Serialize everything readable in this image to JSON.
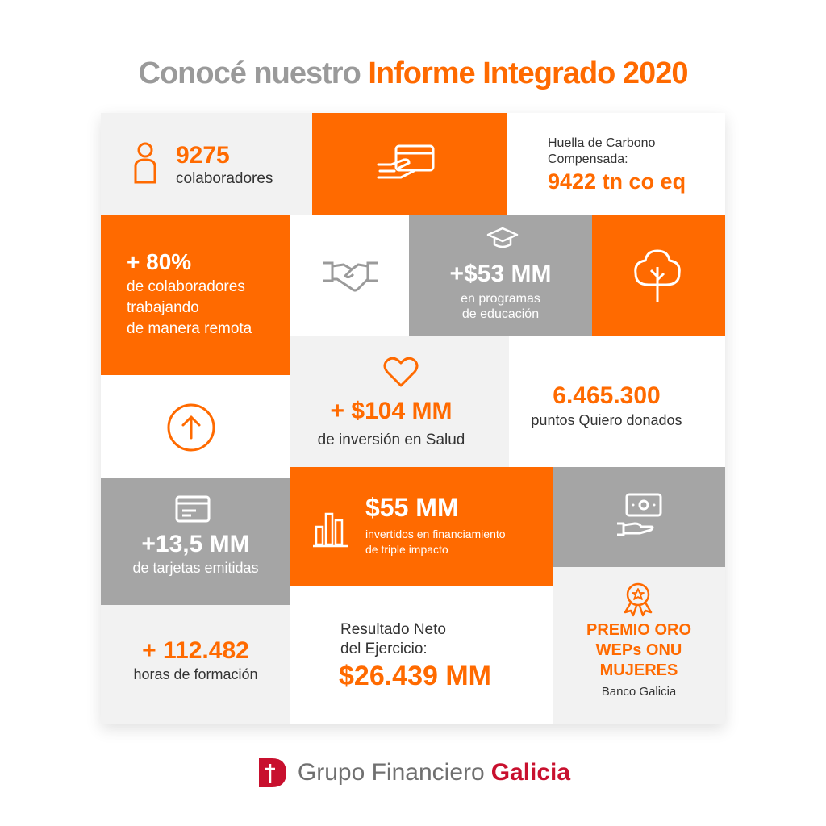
{
  "title": {
    "part1": "Conocé nuestro",
    "part2": "Informe Integrado 2020"
  },
  "colors": {
    "orange": "#ff6a00",
    "gray": "#a5a5a5",
    "light": "#f2f2f2",
    "brand_red": "#c8102e"
  },
  "tiles": {
    "colaboradores": {
      "value": "9275",
      "label": "colaboradores"
    },
    "huella": {
      "label1": "Huella de Carbono",
      "label2": "Compensada:",
      "value": "9422 tn co eq"
    },
    "remoto": {
      "value": "+ 80%",
      "line1": "de colaboradores",
      "line2": "trabajando",
      "line3": "de manera remota"
    },
    "educacion": {
      "value": "+$53 MM",
      "line1": "en programas",
      "line2": "de educación"
    },
    "salud": {
      "value": "+ $104 MM",
      "label": "de inversión en Salud"
    },
    "quiero": {
      "value": "6.465.300",
      "label": "puntos Quiero donados"
    },
    "tarjetas": {
      "value": "+13,5 MM",
      "label": "de tarjetas emitidas"
    },
    "financiamiento": {
      "value": "$55 MM",
      "line1": "invertidos en financiamiento",
      "line2": "de triple impacto"
    },
    "formacion": {
      "value": "+ 112.482",
      "label": "horas de formación"
    },
    "resultado": {
      "label1": "Resultado Neto",
      "label2": "del Ejercicio:",
      "value": "$26.439 MM"
    },
    "premio": {
      "line1": "PREMIO ORO",
      "line2": "WEPs ONU",
      "line3": "MUJERES",
      "label": "Banco Galicia"
    }
  },
  "icons": [
    "person-icon",
    "hand-card-icon",
    "handshake-icon",
    "graduation-cap-icon",
    "tree-icon",
    "arrow-up-circle-icon",
    "heart-icon",
    "card-icon",
    "bar-chart-icon",
    "hand-money-icon",
    "award-icon"
  ],
  "footer": {
    "brand_part1": "Grupo Financiero",
    "brand_part2": "Galicia"
  }
}
